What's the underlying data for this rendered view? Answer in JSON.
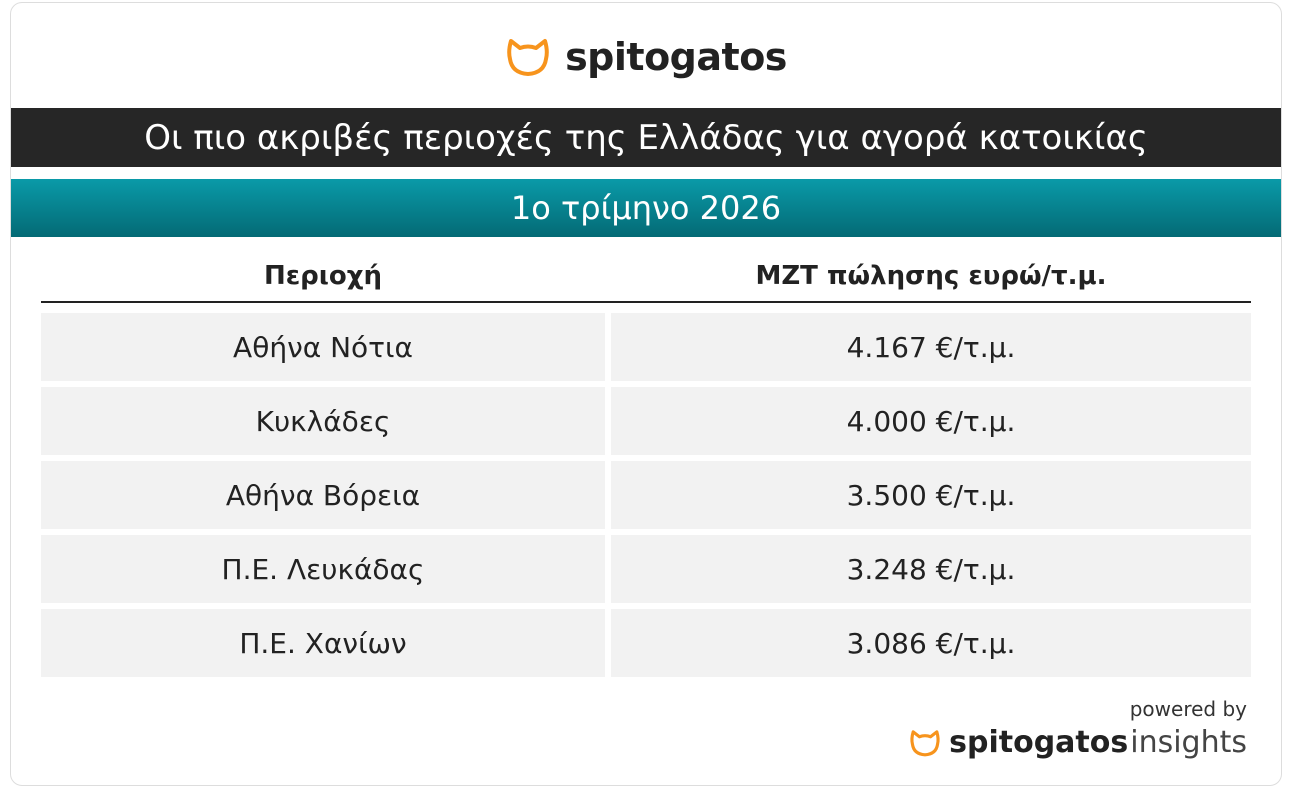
{
  "header": {
    "logo": "spitogatos",
    "title": "Οι πιο ακριβές περιοχές της Ελλάδας για αγορά κατοικίας",
    "subtitle": "1ο τρίμηνο 2026"
  },
  "table": {
    "columns": [
      "Περιοχή",
      "ΜΖΤ πώλησης ευρώ/τ.μ."
    ],
    "rows": [
      [
        "Αθήνα Νότια",
        "4.167 €/τ.μ."
      ],
      [
        "Κυκλάδες",
        "4.000 €/τ.μ."
      ],
      [
        "Αθήνα Βόρεια",
        "3.500 €/τ.μ."
      ],
      [
        "Π.Ε. Λευκάδας",
        "3.248 €/τ.μ."
      ],
      [
        "Π.Ε. Χανίων",
        "3.086 €/τ.μ."
      ]
    ]
  },
  "footer": {
    "powered_by": "powered by",
    "brand": "spitogatos",
    "brand_suffix": "insights"
  }
}
